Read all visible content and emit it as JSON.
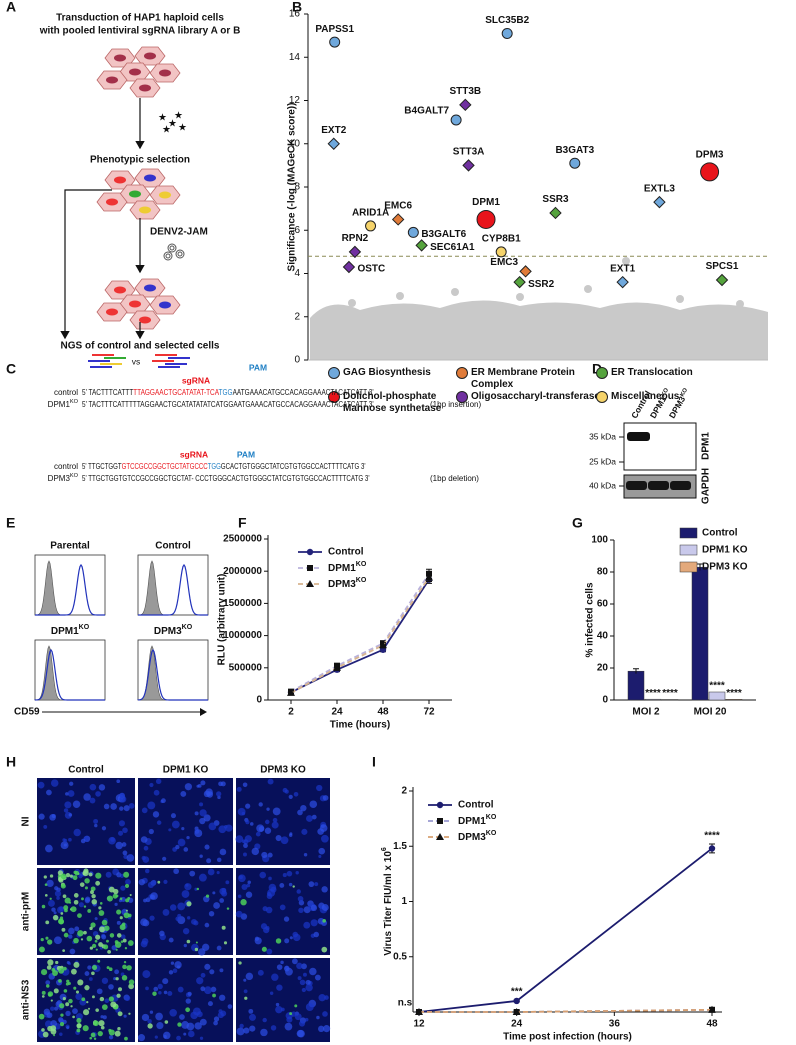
{
  "panel_labels": [
    "A",
    "B",
    "C",
    "D",
    "E",
    "F",
    "G",
    "H",
    "I"
  ],
  "panel_a": {
    "title_lines": [
      "Transduction of HAP1 haploid cells",
      "with pooled lentiviral sgRNA library A or B"
    ],
    "selection": "Phenotypic selection",
    "virus": "DENV2-JAM",
    "result": "NGS of control and selected cells",
    "vs": "vs"
  },
  "panel_c": {
    "blocks": [
      {
        "sgrna": "sgRNA",
        "pam": "PAM",
        "rows": [
          {
            "name": "control",
            "seq": [
              {
                "text": "5' TACTTTCATTT"
              },
              {
                "text": "TTAGGAACTGCATATAT-TCA",
                "color": "#e8141b"
              },
              {
                "text": "TGG",
                "color": "#1f7fc4"
              },
              {
                "text": "AATGAAACATGCCACAGGAAACTACATCATT 3'"
              }
            ]
          },
          {
            "name": {
              "base": "DPM1",
              "sup": "KO"
            },
            "seq": [
              {
                "text": "5' TACTTTCATTTTTAGGAACTGCATATATATCATGGAATGAAACATGCCACAGGAAACTACATCATT 3'"
              }
            ],
            "note": "(1bp insertion)"
          }
        ]
      },
      {
        "sgrna": "sgRNA",
        "pam": "PAM",
        "rows": [
          {
            "name": "control",
            "seq": [
              {
                "text": "5' TTGCTGGT"
              },
              {
                "text": "GTCCGCCGGCTGCTATGCCC",
                "color": "#e8141b"
              },
              {
                "text": "TGG",
                "color": "#1f7fc4"
              },
              {
                "text": "GCACTGTGGGCTATCGTGTGGCCACTTTTCATG 3'"
              }
            ]
          },
          {
            "name": {
              "base": "DPM3",
              "sup": "KO"
            },
            "seq": [
              {
                "text": "5' TTGCTGGTGTCCGCCGGCTGCTAT- CCCTGGGCACTGTGGGCTATCGTGTGGCCACTTTTCATG 3'"
              }
            ],
            "note": "(1bp deletion)"
          }
        ]
      }
    ]
  },
  "panel_d": {
    "lanes": [
      "Control",
      {
        "base": "DPM1",
        "sup": "KO"
      },
      {
        "base": "DPM3",
        "sup": "KO"
      }
    ],
    "markers": [
      "35 kDa",
      "25 kDa",
      "40 kDa"
    ],
    "bands": [
      "DPM1",
      "GAPDH"
    ]
  },
  "panel_e": {
    "titles": [
      "Parental",
      "Control",
      {
        "base": "DPM1",
        "sup": "KO"
      },
      {
        "base": "DPM3",
        "sup": "KO"
      }
    ],
    "axis": "CD59"
  },
  "panel_h": {
    "columns": [
      "Control",
      "DPM1 KO",
      "DPM3 KO"
    ],
    "rows": [
      "NI",
      "anti-prM",
      "anti-NS3"
    ]
  },
  "chart_data": [
    {
      "type": "scatter",
      "ylabel": "Significance (-log (MAGeCK score))",
      "xlim": [
        0,
        100
      ],
      "ylim": [
        0,
        16
      ],
      "yticks": [
        0,
        2,
        4,
        6,
        8,
        10,
        12,
        14,
        16
      ],
      "threshold": 4.8,
      "series": [
        {
          "name": "GAG Biosynthesis",
          "color": "#6fa8dc",
          "labels": [
            "PAPSS1",
            "SLC35B2",
            "B4GALT7",
            "EXT2",
            "B3GAT3",
            "EXTL3",
            "B3GALT6",
            "EXT1"
          ],
          "x": [
            5.8,
            43.3,
            32.2,
            5.6,
            58,
            76.4,
            22.9,
            68.4
          ],
          "values": [
            14.7,
            15.1,
            11.1,
            10,
            9.1,
            7.3,
            5.9,
            3.6
          ],
          "markers": [
            "circle",
            "circle",
            "circle",
            "diamond",
            "circle",
            "diamond",
            "circle",
            "diamond"
          ]
        },
        {
          "name": "ER Membrane Protein Complex",
          "color": "#e07b39",
          "labels": [
            "EMC6",
            "EMC3"
          ],
          "x": [
            19.6,
            47.3
          ],
          "values": [
            6.5,
            4.1
          ],
          "markers": [
            "diamond",
            "diamond"
          ]
        },
        {
          "name": "ER Translocation",
          "color": "#55a33d",
          "labels": [
            "SSR3",
            "SEC61A1",
            "SSR2",
            "SPCS1"
          ],
          "x": [
            53.8,
            24.7,
            46,
            90
          ],
          "values": [
            6.8,
            5.3,
            3.6,
            3.7
          ],
          "markers": [
            "diamond",
            "diamond",
            "diamond",
            "diamond"
          ]
        },
        {
          "name": "Dolichol-phosphate Mannose synthetase",
          "color": "#e8141b",
          "labels": [
            "DPM1",
            "DPM3"
          ],
          "x": [
            38.7,
            87.3
          ],
          "values": [
            6.5,
            8.7
          ],
          "markers": [
            "circle-large",
            "circle-large"
          ]
        },
        {
          "name": "Oligosaccharyl-transferase",
          "color": "#7030a0",
          "labels": [
            "STT3B",
            "STT3A",
            "RPN2",
            "OSTC"
          ],
          "x": [
            34.2,
            34.9,
            10.2,
            8.9
          ],
          "values": [
            11.8,
            9,
            5,
            4.3
          ],
          "markers": [
            "diamond",
            "diamond",
            "diamond",
            "diamond"
          ]
        },
        {
          "name": "Miscellaneous",
          "color": "#f5d36a",
          "labels": [
            "ARID1A",
            "CYP8B1"
          ],
          "x": [
            13.6,
            42
          ],
          "values": [
            6.2,
            5
          ],
          "markers": [
            "circle",
            "circle"
          ]
        }
      ]
    },
    {
      "type": "line",
      "xlabel": "Time (hours)",
      "ylabel": "RLU (arbitrary unit)",
      "categories": [
        "2",
        "24",
        "48",
        "72"
      ],
      "ylim": [
        0,
        2500000
      ],
      "yticks": [
        0,
        500000,
        1000000,
        1500000,
        2000000,
        2500000
      ],
      "series": [
        {
          "name": "Control",
          "color": "#23237a",
          "marker_color": "#23237a",
          "dash": false,
          "marker": "circle",
          "values": [
            120000,
            470000,
            780000,
            1870000
          ],
          "errors": [
            30000,
            30000,
            30000,
            60000
          ]
        },
        {
          "name": {
            "base": "DPM1",
            "sup": "KO"
          },
          "color": "#b9b2dc",
          "marker_color": "#111111",
          "dash": true,
          "marker": "square",
          "values": [
            130000,
            530000,
            880000,
            1960000
          ],
          "errors": [
            30000,
            40000,
            40000,
            70000
          ]
        },
        {
          "name": {
            "base": "DPM3",
            "sup": "KO"
          },
          "color": "#d8b48e",
          "marker_color": "#111111",
          "dash": true,
          "marker": "triangle",
          "values": [
            110000,
            500000,
            850000,
            1900000
          ],
          "errors": [
            30000,
            40000,
            40000,
            60000
          ]
        }
      ]
    },
    {
      "type": "bar",
      "ylabel": "% infected cells",
      "categories": [
        "MOI 2",
        "MOI 20"
      ],
      "ylim": [
        0,
        100
      ],
      "yticks": [
        0,
        20,
        40,
        60,
        80,
        100
      ],
      "series": [
        {
          "name": "Control",
          "color": "#1c1c6e",
          "values": [
            18,
            83
          ],
          "errors": [
            1.5,
            2
          ]
        },
        {
          "name": "DPM1 KO",
          "color": "#c9c9eb",
          "values": [
            0.5,
            5
          ],
          "significance": [
            "****",
            "****"
          ]
        },
        {
          "name": "DPM3 KO",
          "color": "#e3a97b",
          "values": [
            0.3,
            0.4
          ],
          "significance": [
            "****",
            "****"
          ]
        }
      ]
    },
    {
      "type": "line",
      "xlabel": "Time post infection (hours)",
      "ylabel": {
        "base": "Virus Titer FIU/ml x 10",
        "sup": "6"
      },
      "xlim": [
        12,
        48
      ],
      "xticks": [
        12,
        24,
        36,
        48
      ],
      "ylim": [
        0,
        2
      ],
      "yticks": [
        0.5,
        1,
        1.5,
        2
      ],
      "series": [
        {
          "name": "Control",
          "color": "#1c1c6e",
          "marker_color": "#1c1c6e",
          "dash": false,
          "marker": "circle",
          "x": [
            12,
            24,
            48
          ],
          "values": [
            0,
            0.1,
            1.48
          ],
          "errors": [
            0.01,
            0.01,
            0.04
          ],
          "significance": [
            "n.s",
            "***",
            "****"
          ]
        },
        {
          "name": {
            "base": "DPM1",
            "sup": "KO"
          },
          "color": "#9a9ad0",
          "marker_color": "#111111",
          "dash": true,
          "marker": "square",
          "x": [
            12,
            24,
            48
          ],
          "values": [
            0,
            0,
            0.02
          ],
          "errors": [
            0.01,
            0.01,
            0.02
          ]
        },
        {
          "name": {
            "base": "DPM3",
            "sup": "KO"
          },
          "color": "#d8a070",
          "marker_color": "#111111",
          "dash": true,
          "marker": "triangle",
          "x": [
            12,
            24,
            48
          ],
          "values": [
            0,
            0,
            0.02
          ],
          "errors": [
            0.01,
            0.01,
            0.02
          ]
        }
      ]
    }
  ]
}
